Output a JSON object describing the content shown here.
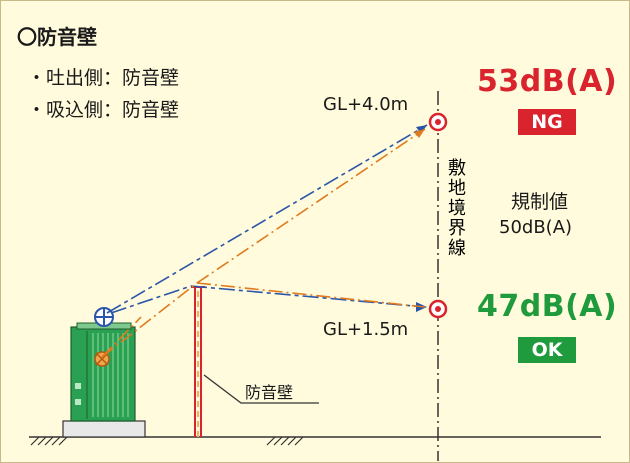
{
  "title": "〇防音壁",
  "bullets": [
    "・吐出側：防音壁",
    "・吸込側：防音壁"
  ],
  "receivers": [
    {
      "height_label": "GL+4.0m",
      "level": "53dB(A)",
      "verdict": "NG",
      "color": "#d9232d"
    },
    {
      "height_label": "GL+1.5m",
      "level": "47dB(A)",
      "verdict": "OK",
      "color": "#1f9a3c"
    }
  ],
  "boundary_label": [
    "敷",
    "地",
    "境",
    "界",
    "線"
  ],
  "regulation": {
    "label": "規制値",
    "value": "50dB(A)"
  },
  "wall_label": "防音壁",
  "colors": {
    "background": "#fffbdc",
    "blue_path": "#2b55a8",
    "orange_path": "#e07a1f",
    "wall": "#d9232d",
    "unit": "#2aa052"
  }
}
